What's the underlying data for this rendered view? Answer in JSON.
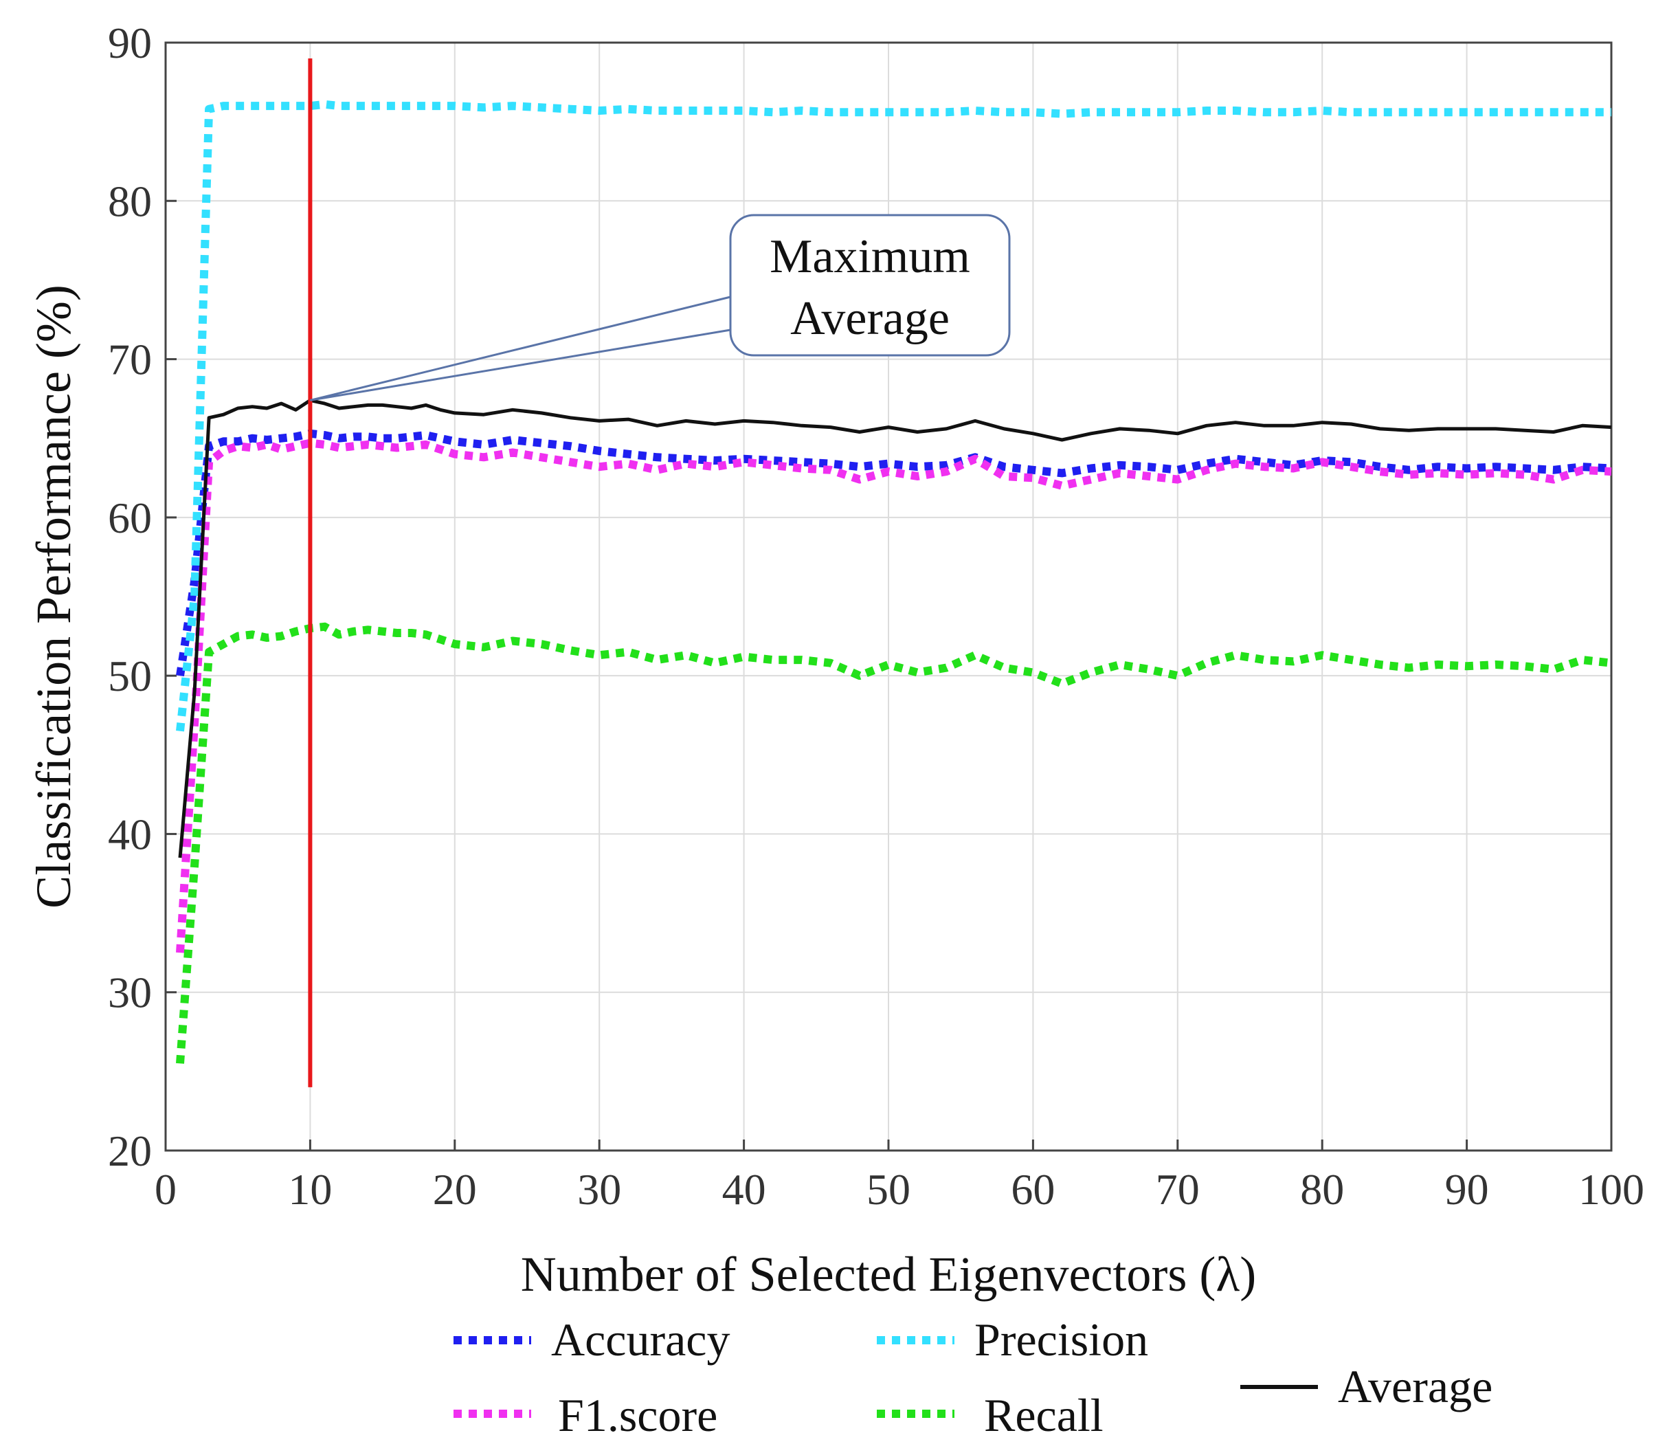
{
  "chart_data": {
    "type": "line",
    "title": "",
    "xlabel": "Number of Selected Eigenvectors (λ)",
    "ylabel": "Classification Performance (%)",
    "xlim": [
      0,
      100
    ],
    "ylim": [
      20,
      90
    ],
    "xticks": [
      0,
      10,
      20,
      30,
      40,
      50,
      60,
      70,
      80,
      90,
      100
    ],
    "yticks": [
      20,
      30,
      40,
      50,
      60,
      70,
      80,
      90
    ],
    "grid": true,
    "x": [
      1,
      2,
      3,
      4,
      5,
      6,
      7,
      8,
      9,
      10,
      11,
      12,
      13,
      14,
      15,
      16,
      17,
      18,
      19,
      20,
      22,
      24,
      26,
      28,
      30,
      32,
      34,
      36,
      38,
      40,
      42,
      44,
      46,
      48,
      50,
      52,
      54,
      56,
      58,
      60,
      62,
      64,
      66,
      68,
      70,
      72,
      74,
      76,
      78,
      80,
      82,
      84,
      86,
      88,
      90,
      92,
      94,
      96,
      98,
      100
    ],
    "series": [
      {
        "name": "Accuracy",
        "color": "#1f1ff0",
        "style": "dotted",
        "values": [
          50,
          56,
          64.5,
          64.8,
          64.8,
          65,
          64.9,
          65,
          65.1,
          65.3,
          65.2,
          65,
          65.1,
          65.1,
          65,
          65,
          65.1,
          65.2,
          65,
          64.8,
          64.6,
          64.9,
          64.7,
          64.5,
          64.2,
          64,
          63.8,
          63.7,
          63.6,
          63.7,
          63.6,
          63.5,
          63.4,
          63.2,
          63.4,
          63.2,
          63.3,
          63.8,
          63.2,
          63,
          62.8,
          63.1,
          63.3,
          63.2,
          63,
          63.4,
          63.7,
          63.5,
          63.3,
          63.6,
          63.5,
          63.2,
          63,
          63.2,
          63.1,
          63.2,
          63.1,
          63,
          63.2,
          63.1
        ]
      },
      {
        "name": "Precision",
        "color": "#33e0ff",
        "style": "dotted",
        "values": [
          46.5,
          55,
          85.8,
          86,
          86,
          86,
          86,
          86,
          86,
          86,
          86.1,
          86,
          86,
          86,
          86,
          86,
          86,
          86,
          86,
          86,
          85.9,
          86,
          85.9,
          85.8,
          85.7,
          85.8,
          85.7,
          85.7,
          85.7,
          85.7,
          85.6,
          85.7,
          85.6,
          85.6,
          85.6,
          85.6,
          85.6,
          85.7,
          85.6,
          85.6,
          85.5,
          85.6,
          85.6,
          85.6,
          85.6,
          85.7,
          85.7,
          85.6,
          85.6,
          85.7,
          85.6,
          85.6,
          85.6,
          85.6,
          85.6,
          85.6,
          85.6,
          85.6,
          85.6,
          85.6
        ]
      },
      {
        "name": "F1.score",
        "color": "#f030f0",
        "style": "dotted",
        "values": [
          32.5,
          47,
          63.5,
          64.2,
          64.5,
          64.4,
          64.6,
          64.3,
          64.5,
          64.7,
          64.6,
          64.4,
          64.5,
          64.6,
          64.5,
          64.4,
          64.5,
          64.6,
          64.3,
          64,
          63.8,
          64.1,
          63.8,
          63.5,
          63.2,
          63.4,
          63,
          63.4,
          63.2,
          63.5,
          63.3,
          63.1,
          63,
          62.4,
          62.9,
          62.6,
          62.9,
          63.7,
          62.6,
          62.5,
          62,
          62.4,
          62.8,
          62.6,
          62.4,
          63,
          63.4,
          63.2,
          63.1,
          63.5,
          63.2,
          62.9,
          62.7,
          62.8,
          62.7,
          62.8,
          62.7,
          62.4,
          63,
          62.9
        ]
      },
      {
        "name": "Recall",
        "color": "#22e01a",
        "style": "dotted",
        "values": [
          25.5,
          38,
          51.5,
          52,
          52.5,
          52.6,
          52.4,
          52.5,
          52.8,
          53,
          53.1,
          52.6,
          52.8,
          52.9,
          52.8,
          52.7,
          52.7,
          52.6,
          52.3,
          52,
          51.8,
          52.2,
          52,
          51.6,
          51.3,
          51.5,
          51,
          51.3,
          50.8,
          51.2,
          51,
          51,
          50.8,
          50,
          50.7,
          50.2,
          50.5,
          51.3,
          50.5,
          50.2,
          49.5,
          50.2,
          50.7,
          50.4,
          50,
          50.8,
          51.3,
          51,
          50.9,
          51.3,
          51,
          50.7,
          50.5,
          50.7,
          50.6,
          50.7,
          50.6,
          50.4,
          51,
          50.8
        ]
      },
      {
        "name": "Average",
        "color": "#111111",
        "style": "solid",
        "values": [
          38.5,
          49,
          66.3,
          66.5,
          66.9,
          67,
          66.9,
          67.2,
          66.8,
          67.4,
          67.2,
          66.9,
          67,
          67.1,
          67.1,
          67,
          66.9,
          67.1,
          66.8,
          66.6,
          66.5,
          66.8,
          66.6,
          66.3,
          66.1,
          66.2,
          65.8,
          66.1,
          65.9,
          66.1,
          66,
          65.8,
          65.7,
          65.4,
          65.7,
          65.4,
          65.6,
          66.1,
          65.6,
          65.3,
          64.9,
          65.3,
          65.6,
          65.5,
          65.3,
          65.8,
          66,
          65.8,
          65.8,
          66,
          65.9,
          65.6,
          65.5,
          65.6,
          65.6,
          65.6,
          65.5,
          65.4,
          65.8,
          65.7
        ]
      }
    ],
    "annotations": [
      {
        "type": "vline",
        "x": 10,
        "y_from": 24,
        "y_to": 89,
        "color": "#e8181b"
      },
      {
        "type": "callout",
        "line1": "Maximum",
        "line2": "Average",
        "points_to_x": 10,
        "points_to_y": 67.4
      }
    ],
    "legend_position": "bottom"
  }
}
